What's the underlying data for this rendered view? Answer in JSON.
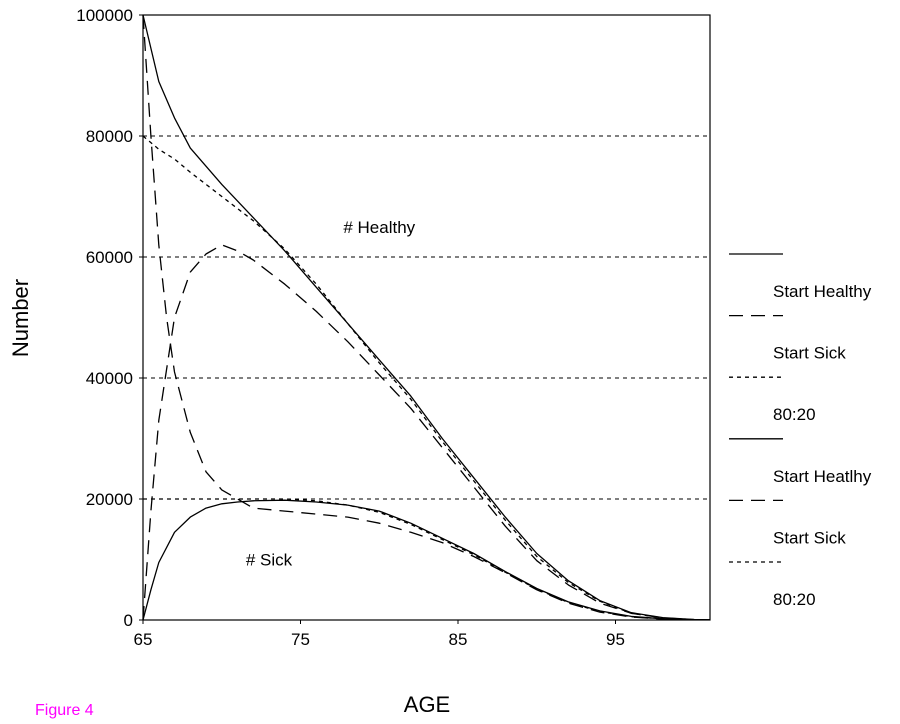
{
  "figure_label": "Figure 4",
  "chart_data": {
    "type": "line",
    "title": "",
    "xlabel": "AGE",
    "ylabel": "Number",
    "xlim": [
      65,
      101
    ],
    "ylim": [
      0,
      100000
    ],
    "x_ticks": [
      65,
      75,
      85,
      95
    ],
    "y_ticks": [
      0,
      20000,
      40000,
      60000,
      80000,
      100000
    ],
    "grid": "horizontal dashed",
    "annotations": [
      {
        "text": "# Healthy",
        "x": 80,
        "y": 65000
      },
      {
        "text": "# Sick",
        "x": 73,
        "y": 10000
      }
    ],
    "legend_position": "right",
    "legend": [
      "Start Healthy",
      "Start Sick",
      "80:20",
      "Start Heatlhy",
      "Start Sick",
      "80:20"
    ],
    "series": [
      {
        "name": "Start Healthy",
        "group": "# Healthy",
        "dash": "solid",
        "x": [
          65,
          66,
          67,
          68,
          70,
          72,
          74,
          76,
          78,
          80,
          82,
          84,
          86,
          88,
          90,
          92,
          94,
          96,
          98,
          100,
          101
        ],
        "values": [
          100000,
          89000,
          83000,
          78000,
          72000,
          66500,
          61000,
          55000,
          49000,
          43000,
          37000,
          30000,
          23500,
          17000,
          11000,
          6500,
          3200,
          1200,
          400,
          80,
          20
        ]
      },
      {
        "name": "Start Sick",
        "group": "# Healthy",
        "dash": "long",
        "x": [
          65,
          65.5,
          66,
          67,
          68,
          69,
          70,
          71,
          72,
          74,
          76,
          78,
          80,
          82,
          84,
          86,
          88,
          90,
          92,
          94,
          96,
          98,
          100,
          101
        ],
        "values": [
          0,
          18000,
          33000,
          50000,
          57500,
          60500,
          62000,
          61000,
          59500,
          55500,
          51000,
          46000,
          40500,
          35000,
          28500,
          22000,
          15500,
          9800,
          5800,
          2800,
          1100,
          350,
          60,
          20
        ]
      },
      {
        "name": "80:20",
        "group": "# Healthy",
        "dash": "short",
        "x": [
          65,
          66,
          67,
          68,
          70,
          72,
          74,
          76,
          78,
          80,
          82,
          84,
          86,
          88,
          90,
          92,
          94,
          96,
          98,
          100,
          101
        ],
        "values": [
          80000,
          77800,
          76200,
          74000,
          70000,
          66000,
          61300,
          55500,
          49000,
          42500,
          36500,
          29500,
          23000,
          16500,
          10500,
          6200,
          3100,
          1100,
          350,
          70,
          20
        ]
      },
      {
        "name": "Start Heatlhy",
        "group": "# Sick",
        "dash": "solid",
        "x": [
          65,
          65.5,
          66,
          67,
          68,
          69,
          70,
          71,
          72,
          74,
          76,
          78,
          80,
          82,
          84,
          86,
          88,
          90,
          92,
          94,
          96,
          98,
          100,
          101
        ],
        "values": [
          0,
          5000,
          9500,
          14500,
          17000,
          18500,
          19200,
          19500,
          19700,
          19800,
          19500,
          19000,
          18000,
          16000,
          13500,
          11000,
          8000,
          5200,
          3000,
          1500,
          600,
          200,
          40,
          10
        ]
      },
      {
        "name": "Start Sick",
        "group": "# Sick",
        "dash": "long",
        "x": [
          65,
          65.5,
          66,
          66.5,
          67,
          68,
          69,
          70,
          71,
          72,
          74,
          76,
          78,
          80,
          82,
          84,
          86,
          88,
          90,
          92,
          94,
          96,
          98,
          100,
          101
        ],
        "values": [
          100000,
          80000,
          62000,
          50000,
          41000,
          31000,
          24500,
          21500,
          20000,
          18500,
          18000,
          17500,
          17000,
          16000,
          14500,
          12800,
          10500,
          7800,
          5000,
          2800,
          1300,
          500,
          150,
          30,
          10
        ]
      },
      {
        "name": "80:20",
        "group": "# Sick",
        "dash": "short",
        "x": [
          65,
          66,
          67,
          68,
          69,
          70,
          72,
          74,
          76,
          78,
          80,
          82,
          84,
          86,
          88,
          90,
          92,
          94,
          96,
          98,
          100,
          101
        ],
        "values": [
          20000,
          20000,
          20000,
          20000,
          20000,
          20000,
          20000,
          20000,
          19700,
          19000,
          17800,
          15800,
          13300,
          10800,
          7900,
          5100,
          2900,
          1400,
          550,
          180,
          35,
          10
        ]
      }
    ]
  }
}
